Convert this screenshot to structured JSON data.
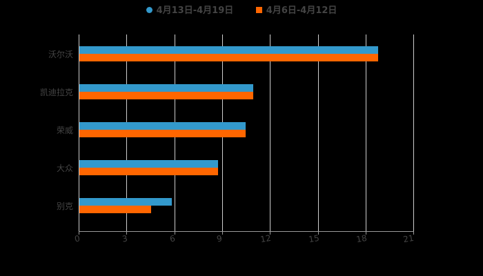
{
  "legend": [
    {
      "label": "4月13日-4月19日",
      "color": "#3399cc",
      "shape": "circle"
    },
    {
      "label": "4月6日-4月12日",
      "color": "#ff6600",
      "shape": "square"
    }
  ],
  "chart_data": {
    "type": "bar",
    "orientation": "horizontal",
    "title": "",
    "categories": [
      "沃尔沃",
      "凯迪拉克",
      "荣威",
      "大众",
      "别克"
    ],
    "series": [
      {
        "name": "4月13日-4月19日",
        "color": "#3399cc",
        "values": [
          18.7,
          10.9,
          10.4,
          8.7,
          5.8
        ]
      },
      {
        "name": "4月6日-4月12日",
        "color": "#ff6600",
        "values": [
          18.7,
          10.9,
          10.4,
          8.7,
          4.5
        ]
      }
    ],
    "xlabel": "",
    "ylabel": "",
    "xlim": [
      0,
      21
    ],
    "xticks": [
      "0",
      "3",
      "6",
      "9",
      "12",
      "15",
      "18",
      "21"
    ],
    "grid": true,
    "legend_position": "top"
  }
}
